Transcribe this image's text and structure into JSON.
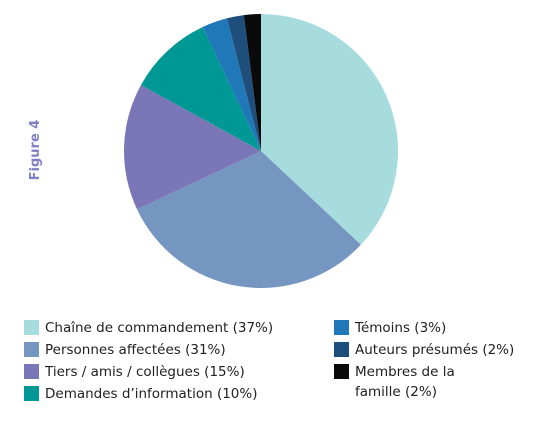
{
  "figure_label": "Figure 4",
  "chart_data": {
    "type": "pie",
    "title": "",
    "slices": [
      {
        "label": "Chaîne de commandement (37%)",
        "value": 37,
        "color": "#a6dcdd"
      },
      {
        "label": "Personnes affectées (31%)",
        "value": 31,
        "color": "#7596c1"
      },
      {
        "label": "Tiers / amis / collègues (15%)",
        "value": 15,
        "color": "#7b76b8"
      },
      {
        "label": "Demandes d’information (10%)",
        "value": 10,
        "color": "#009894"
      },
      {
        "label": "Témoins (3%)",
        "value": 3,
        "color": "#2178b9"
      },
      {
        "label": "Auteurs présumés (2%)",
        "value": 2,
        "color": "#1e4f7c"
      },
      {
        "label": "Membres de la famille (2%)",
        "value": 2,
        "color": "#0a0a0a"
      }
    ],
    "legend_position": "bottom"
  }
}
